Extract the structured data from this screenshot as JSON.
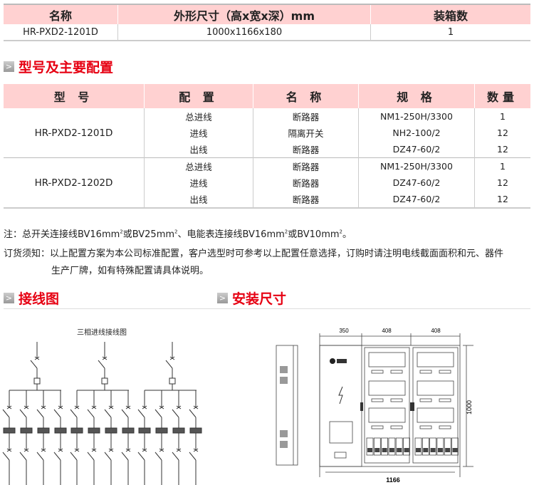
{
  "summary_table": {
    "headers": [
      "名称",
      "外形尺寸（高x宽x深）mm",
      "装箱数"
    ],
    "row": [
      "HR-PXD2-1201D",
      "1000x1166x180",
      "1"
    ]
  },
  "section_config": {
    "title": "型号及主要配置"
  },
  "config_table": {
    "headers": [
      "型 号",
      "配 置",
      "名 称",
      "规 格",
      "数量"
    ],
    "groups": [
      {
        "model": "HR-PXD2-1201D",
        "rows": [
          [
            "总进线",
            "断路器",
            "NM1-250H/3300",
            "1"
          ],
          [
            "进线",
            "隔离开关",
            "NH2-100/2",
            "12"
          ],
          [
            "出线",
            "断路器",
            "DZ47-60/2",
            "12"
          ]
        ]
      },
      {
        "model": "HR-PXD2-1202D",
        "rows": [
          [
            "总进线",
            "断路器",
            "NM1-250H/3300",
            "1"
          ],
          [
            "进线",
            "断路器",
            "DZ47-60/2",
            "12"
          ],
          [
            "出线",
            "断路器",
            "DZ47-60/2",
            "12"
          ]
        ]
      }
    ]
  },
  "notes": {
    "note_prefix": "注：总开关连接线BV16mm",
    "sup": "2",
    "note_mid1": "或BV25mm",
    "note_mid2": "、电能表连接线BV16mm",
    "note_mid3": "或BV10mm",
    "note_end": "。",
    "order_label": "订货须知：",
    "order_line1": "以上配置方案为本公司标准配置，客户选型时可参考以上配置任意选择，订购时请注明电线截面面积和元、器件",
    "order_line2": "生产厂牌，如有特殊配置请具体说明。"
  },
  "section_wiring": {
    "title": "接线图",
    "diagram_title": "三相进线接线图"
  },
  "section_install": {
    "title": "安装尺寸",
    "dims": {
      "w1": "350",
      "w2": "408",
      "w3": "408",
      "height": "1000",
      "total": "1166"
    }
  },
  "colors": {
    "accent": "#e60012",
    "header_bg": "#ffd1d1"
  }
}
